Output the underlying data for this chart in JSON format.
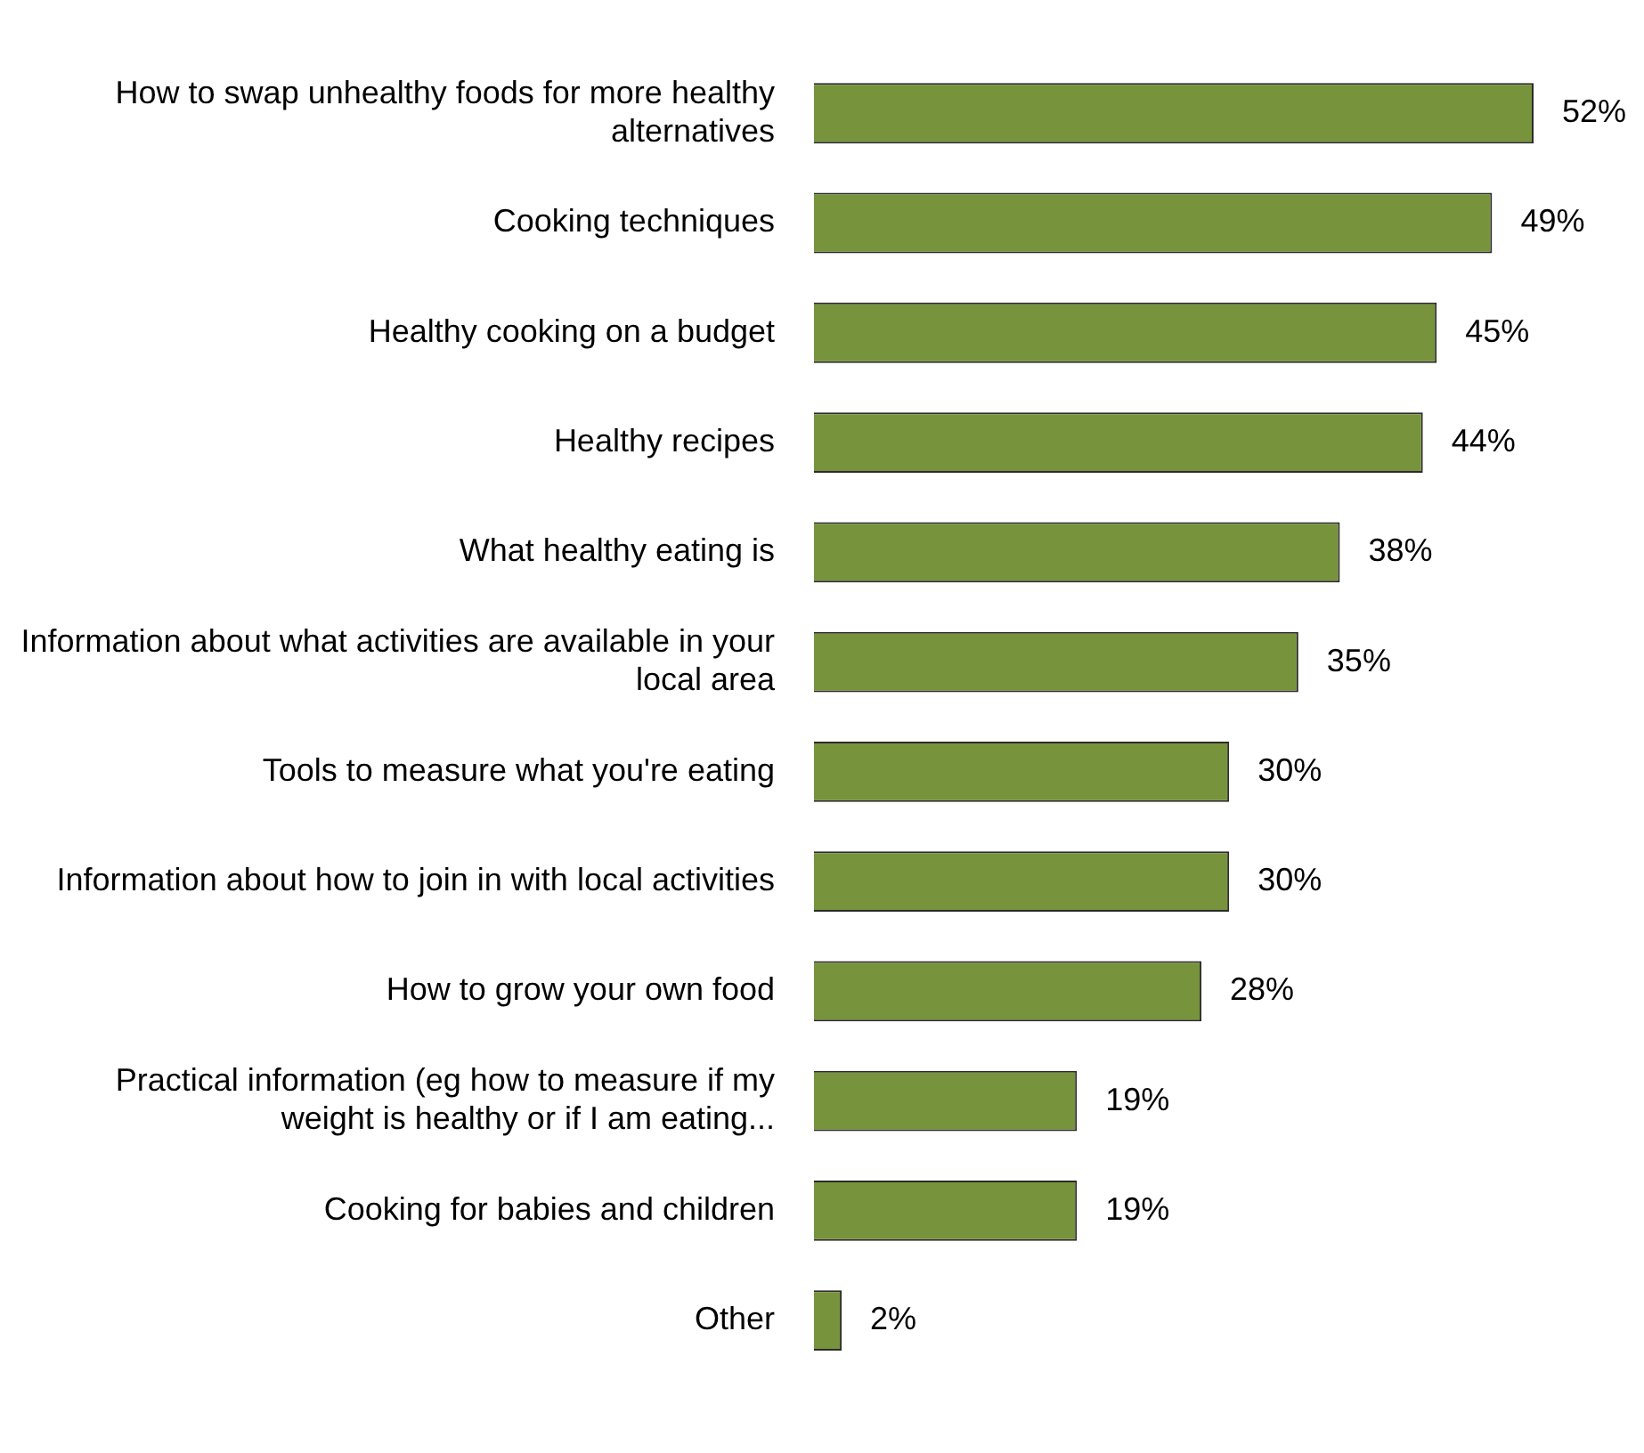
{
  "chart_data": {
    "type": "bar",
    "orientation": "horizontal",
    "categories": [
      "How to swap unhealthy foods for more healthy alternatives",
      "Cooking techniques",
      "Healthy cooking on a budget",
      "Healthy recipes",
      "What healthy eating is",
      "Information about what activities are available in your local area",
      "Tools to measure what you're eating",
      "Information about how to join in with local activities",
      "How to grow your own food",
      "Practical information (eg how to measure if my weight is healthy or if I am eating...",
      "Cooking for babies and children",
      "Other"
    ],
    "values": [
      52,
      49,
      45,
      44,
      38,
      35,
      30,
      30,
      28,
      19,
      19,
      2
    ],
    "value_labels": [
      "52%",
      "49%",
      "45%",
      "44%",
      "38%",
      "35%",
      "30%",
      "30%",
      "28%",
      "19%",
      "19%",
      "2%"
    ],
    "color": "#77933c",
    "grid": false,
    "legend": false
  }
}
